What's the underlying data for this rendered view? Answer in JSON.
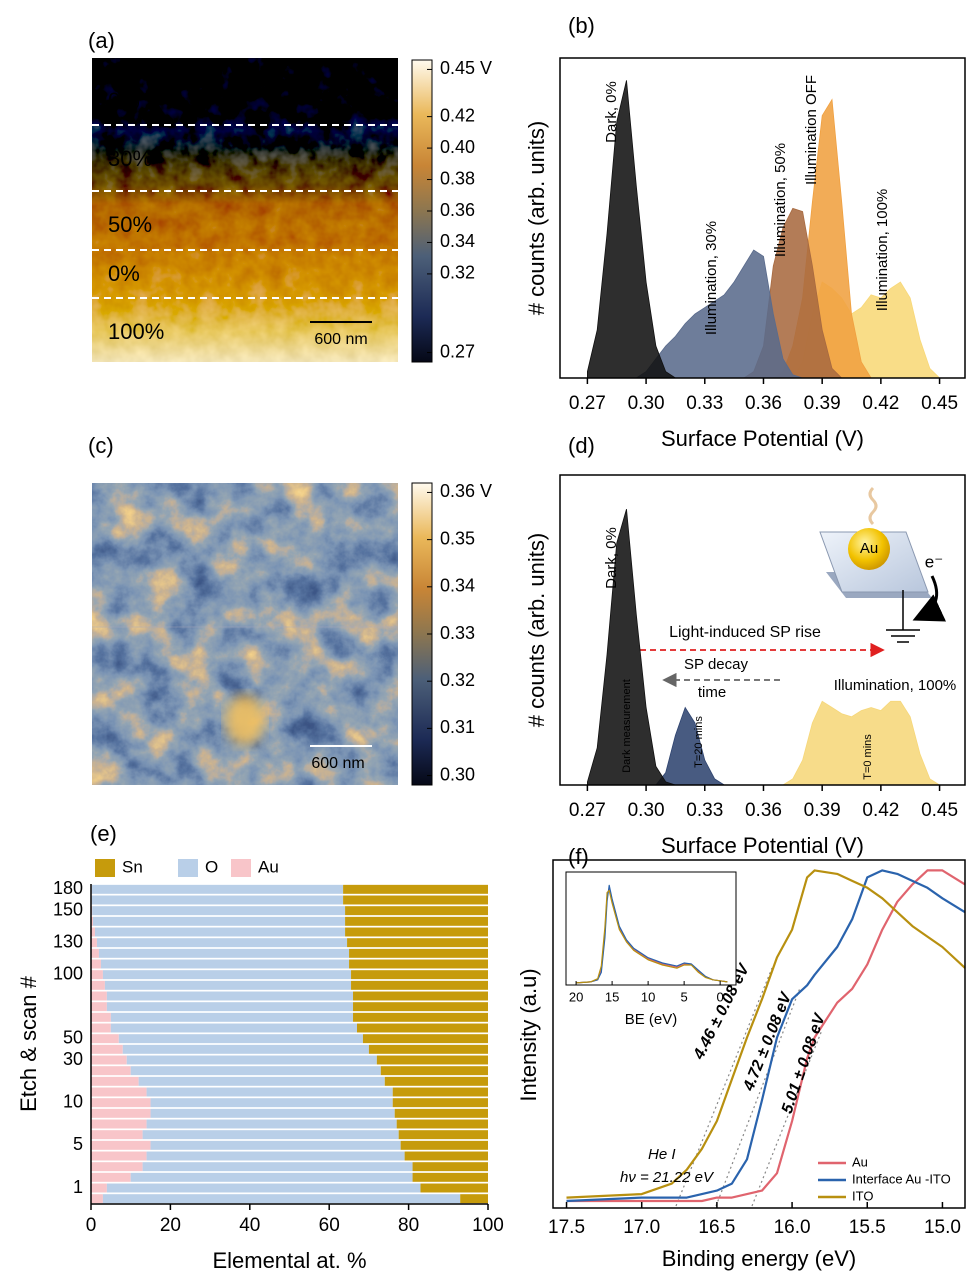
{
  "chart_data": [
    {
      "type": "image",
      "label": "(a)",
      "annotations": [
        "0%",
        "30%",
        "50%",
        "0%",
        "100%"
      ],
      "scale_bar": "600 nm",
      "clim": [
        0.264,
        0.456
      ],
      "colorbar_ticks": [
        {
          "value": 0.45,
          "label": "0.45 V"
        },
        0.42,
        {
          "value": 0.4,
          "label": "0.40"
        },
        0.38,
        0.36,
        0.34,
        0.32,
        0.27
      ]
    },
    {
      "type": "area",
      "label": "(b)",
      "xlabel": "Surface Potential (V)",
      "ylabel": "# counts (arb. units)",
      "xlim": [
        0.256,
        0.463
      ],
      "ylim": [
        0,
        1
      ],
      "xticks": [
        0.27,
        {
          "value": 0.3,
          "label": "0.30"
        },
        0.33,
        0.36,
        0.39,
        0.42,
        0.45
      ],
      "x": [
        0.27,
        0.275,
        0.28,
        0.285,
        0.29,
        0.295,
        0.3,
        0.305,
        0.31,
        0.315,
        0.32,
        0.325,
        0.33,
        0.335,
        0.34,
        0.345,
        0.35,
        0.355,
        0.36,
        0.365,
        0.37,
        0.375,
        0.38,
        0.385,
        0.39,
        0.395,
        0.4,
        0.405,
        0.41,
        0.415,
        0.42,
        0.425,
        0.43,
        0.435,
        0.44,
        0.445,
        0.45
      ],
      "series": [
        {
          "name": "Dark, 0%",
          "color": "#111111",
          "values": [
            0.02,
            0.15,
            0.45,
            0.8,
            0.93,
            0.6,
            0.3,
            0.1,
            0.02,
            0,
            0,
            0,
            0,
            0,
            0,
            0,
            0,
            0,
            0,
            0,
            0,
            0,
            0,
            0,
            0,
            0,
            0,
            0,
            0,
            0,
            0,
            0,
            0,
            0,
            0,
            0,
            0
          ]
        },
        {
          "name": "Illumination, 30%",
          "color": "#5a6b8c",
          "values": [
            0,
            0,
            0,
            0,
            0,
            0,
            0.02,
            0.06,
            0.1,
            0.13,
            0.17,
            0.2,
            0.22,
            0.24,
            0.26,
            0.3,
            0.35,
            0.4,
            0.38,
            0.2,
            0.06,
            0.01,
            0,
            0,
            0,
            0,
            0,
            0,
            0,
            0,
            0,
            0,
            0,
            0,
            0,
            0,
            0
          ]
        },
        {
          "name": "Illumination, 50%",
          "color": "#a86a40",
          "values": [
            0,
            0,
            0,
            0,
            0,
            0,
            0,
            0,
            0,
            0,
            0,
            0,
            0,
            0,
            0,
            0,
            0,
            0.02,
            0.1,
            0.35,
            0.47,
            0.53,
            0.52,
            0.35,
            0.15,
            0.03,
            0,
            0,
            0,
            0,
            0,
            0,
            0,
            0,
            0,
            0,
            0
          ]
        },
        {
          "name": "Illumination OFF",
          "color": "#f0a040",
          "values": [
            0,
            0,
            0,
            0,
            0,
            0,
            0,
            0,
            0,
            0,
            0,
            0,
            0,
            0,
            0,
            0,
            0,
            0,
            0,
            0,
            0.02,
            0.1,
            0.25,
            0.55,
            0.82,
            0.87,
            0.55,
            0.2,
            0.05,
            0,
            0,
            0,
            0,
            0,
            0,
            0,
            0
          ]
        },
        {
          "name": "Illumination, 100%",
          "color": "#f8d878",
          "values": [
            0,
            0,
            0,
            0,
            0,
            0,
            0,
            0,
            0,
            0,
            0,
            0,
            0,
            0,
            0,
            0,
            0,
            0,
            0,
            0,
            0,
            0,
            0.05,
            0.2,
            0.3,
            0.28,
            0.25,
            0.2,
            0.22,
            0.26,
            0.25,
            0.28,
            0.3,
            0.25,
            0.12,
            0.03,
            0
          ]
        }
      ]
    },
    {
      "type": "image",
      "label": "(c)",
      "scale_bar": "600 nm",
      "clim": [
        0.298,
        0.362
      ],
      "colorbar_ticks": [
        {
          "value": 0.36,
          "label": "0.36 V"
        },
        0.35,
        0.34,
        0.33,
        0.32,
        0.31,
        {
          "value": 0.3,
          "label": "0.30"
        }
      ]
    },
    {
      "type": "area",
      "label": "(d)",
      "xlabel": "Surface Potential (V)",
      "ylabel": "# counts (arb. units)",
      "xlim": [
        0.256,
        0.463
      ],
      "ylim": [
        0,
        1
      ],
      "xticks": [
        0.27,
        {
          "value": 0.3,
          "label": "0.30"
        },
        0.33,
        0.36,
        0.39,
        0.42,
        0.45
      ],
      "x": [
        0.27,
        0.275,
        0.28,
        0.285,
        0.29,
        0.295,
        0.3,
        0.305,
        0.31,
        0.315,
        0.32,
        0.325,
        0.33,
        0.335,
        0.34,
        0.345,
        0.35,
        0.355,
        0.36,
        0.365,
        0.37,
        0.375,
        0.38,
        0.385,
        0.39,
        0.395,
        0.4,
        0.405,
        0.41,
        0.415,
        0.42,
        0.425,
        0.43,
        0.435,
        0.44,
        0.445,
        0.45
      ],
      "series": [
        {
          "name": "Dark measurement",
          "color": "#111111",
          "values": [
            0.01,
            0.12,
            0.42,
            0.78,
            0.89,
            0.55,
            0.25,
            0.06,
            0.01,
            0,
            0,
            0,
            0,
            0,
            0,
            0,
            0,
            0,
            0,
            0,
            0,
            0,
            0,
            0,
            0,
            0,
            0,
            0,
            0,
            0,
            0,
            0,
            0,
            0,
            0,
            0,
            0
          ]
        },
        {
          "name": "T=20 mins",
          "color": "#2f4470",
          "values": [
            0,
            0,
            0,
            0,
            0,
            0,
            0,
            0,
            0.04,
            0.16,
            0.25,
            0.2,
            0.08,
            0.02,
            0,
            0,
            0,
            0,
            0,
            0,
            0,
            0,
            0,
            0,
            0,
            0,
            0,
            0,
            0,
            0,
            0,
            0,
            0,
            0,
            0,
            0,
            0
          ]
        },
        {
          "name": "T=0 mins",
          "color": "#f6d77a",
          "values": [
            0,
            0,
            0,
            0,
            0,
            0,
            0,
            0,
            0,
            0,
            0,
            0,
            0,
            0,
            0,
            0,
            0,
            0,
            0,
            0,
            0,
            0.02,
            0.08,
            0.2,
            0.27,
            0.25,
            0.23,
            0.22,
            0.24,
            0.25,
            0.24,
            0.27,
            0.27,
            0.22,
            0.1,
            0.02,
            0
          ]
        }
      ],
      "annotations": [
        "Dark, 0%",
        "Illumination, 100%",
        "Light-induced SP rise",
        "SP decay",
        "time",
        "Au",
        "e⁻"
      ]
    },
    {
      "type": "stacked-bar-horizontal",
      "label": "(e)",
      "xlabel": "Elemental at. %",
      "ylabel": "Etch & scan #",
      "xlim": [
        0,
        100
      ],
      "xticks": [
        0,
        20,
        40,
        60,
        80,
        100
      ],
      "categories": [
        null,
        "1",
        null,
        null,
        null,
        "5",
        null,
        null,
        null,
        "10",
        null,
        null,
        null,
        "30",
        null,
        "50",
        null,
        null,
        null,
        null,
        null,
        "100",
        null,
        null,
        "130",
        null,
        null,
        "150",
        null,
        "180"
      ],
      "series": [
        {
          "name": "Sn",
          "color": "#c69b0c",
          "values": [
            7,
            17,
            19,
            19,
            21,
            22,
            22.5,
            23,
            23.5,
            24,
            24,
            26,
            27,
            28,
            30,
            31.5,
            33,
            34,
            34,
            34,
            34.5,
            34.5,
            35,
            35,
            35.5,
            36,
            36,
            36,
            36.5,
            36.5
          ]
        },
        {
          "name": "O",
          "color": "#b9cfe8",
          "values": [
            90,
            79,
            71,
            68,
            65,
            63,
            64.5,
            63,
            61.5,
            61,
            62,
            62,
            63,
            63,
            62,
            61.5,
            62,
            61,
            62,
            62,
            62,
            62.5,
            62.5,
            63,
            63,
            63,
            63.5,
            63.7,
            63.3,
            63.3
          ]
        },
        {
          "name": "Au",
          "color": "#f8c5c9",
          "values": [
            3,
            4,
            10,
            13,
            14,
            15,
            13,
            14,
            15,
            15,
            14,
            12,
            10,
            9,
            8,
            7,
            5,
            5,
            4,
            4,
            3.5,
            3,
            2.5,
            2,
            1.5,
            1,
            0.5,
            0.3,
            0.2,
            0.2
          ]
        }
      ]
    },
    {
      "type": "line",
      "label": "(f)",
      "xlabel": "Binding energy (eV)",
      "ylabel": "Intensity (a.u)",
      "xlim": [
        17.59,
        14.85
      ],
      "ylim": [
        0,
        1
      ],
      "xticks": [
        17.5,
        {
          "value": 17,
          "label": "17.0"
        },
        16.5,
        {
          "value": 16,
          "label": "16.0"
        },
        15.5,
        {
          "value": 15,
          "label": "15.0"
        }
      ],
      "x": [
        17.5,
        17.0,
        16.8,
        16.7,
        16.6,
        16.5,
        16.4,
        16.3,
        16.2,
        16.1,
        16.0,
        15.9,
        15.85,
        15.7,
        15.6,
        15.5,
        15.4,
        15.3,
        15.2,
        15.1,
        15.0,
        14.85
      ],
      "series": [
        {
          "name": "Au",
          "color": "#e0646e",
          "values": [
            0.02,
            0.02,
            0.02,
            0.02,
            0.02,
            0.03,
            0.03,
            0.04,
            0.05,
            0.1,
            0.25,
            0.43,
            0.49,
            0.59,
            0.63,
            0.7,
            0.8,
            0.88,
            0.93,
            0.97,
            0.97,
            0.93
          ]
        },
        {
          "name": "Interface Au -ITO",
          "color": "#2a63ad",
          "values": [
            0.02,
            0.03,
            0.03,
            0.03,
            0.04,
            0.05,
            0.07,
            0.14,
            0.31,
            0.49,
            0.6,
            0.64,
            0.67,
            0.75,
            0.83,
            0.95,
            0.97,
            0.96,
            0.94,
            0.92,
            0.89,
            0.85
          ]
        },
        {
          "name": "ITO",
          "color": "#b89010",
          "values": [
            0.03,
            0.04,
            0.07,
            0.11,
            0.17,
            0.25,
            0.37,
            0.49,
            0.6,
            0.72,
            0.8,
            0.95,
            0.97,
            0.96,
            0.94,
            0.92,
            0.89,
            0.85,
            0.81,
            0.78,
            0.75,
            0.69
          ]
        }
      ],
      "annotations": [
        "4.46 ± 0.08 eV",
        "4.72 ± 0.08 eV",
        "5.01 ± 0.08 eV",
        "He I",
        "hν = 21.22 eV"
      ],
      "inset": {
        "xlabel": "BE (eV)",
        "xlim": [
          21.4,
          -2.2
        ],
        "ylim": [
          0,
          1
        ],
        "xticks": [
          20,
          15,
          10,
          5,
          0
        ],
        "x": [
          20,
          18,
          17,
          16.5,
          16,
          15.7,
          15.4,
          15,
          14,
          13,
          12,
          10,
          8,
          6,
          5,
          4,
          3,
          2,
          1,
          0,
          -1
        ],
        "series": [
          {
            "color": "#e0646e",
            "values": [
              0.02,
              0.03,
              0.05,
              0.15,
              0.5,
              0.85,
              0.92,
              0.8,
              0.55,
              0.42,
              0.34,
              0.25,
              0.2,
              0.17,
              0.2,
              0.2,
              0.13,
              0.08,
              0.05,
              0.04,
              0.03
            ]
          },
          {
            "color": "#2a63ad",
            "values": [
              0.02,
              0.03,
              0.05,
              0.12,
              0.45,
              0.8,
              0.95,
              0.82,
              0.56,
              0.43,
              0.35,
              0.26,
              0.21,
              0.18,
              0.21,
              0.2,
              0.14,
              0.08,
              0.05,
              0.04,
              0.03
            ]
          },
          {
            "color": "#b89010",
            "values": [
              0.02,
              0.03,
              0.06,
              0.18,
              0.55,
              0.88,
              0.9,
              0.78,
              0.53,
              0.41,
              0.33,
              0.24,
              0.19,
              0.16,
              0.19,
              0.19,
              0.12,
              0.07,
              0.05,
              0.04,
              0.03
            ]
          }
        ]
      }
    }
  ]
}
